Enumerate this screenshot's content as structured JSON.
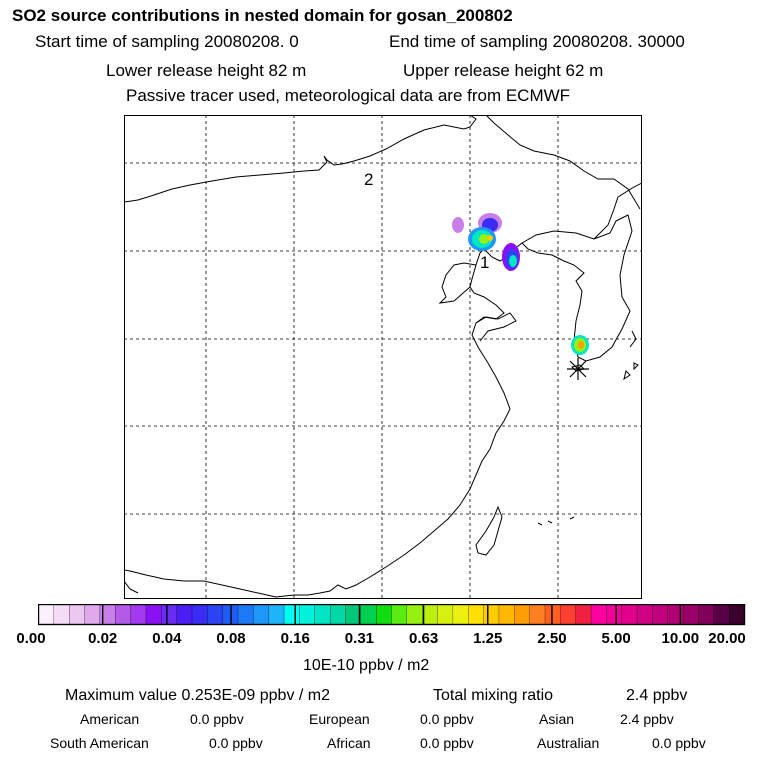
{
  "header": {
    "title": "SO2 source contributions in nested domain for gosan_200802",
    "start_time": "Start time of sampling 20080208.     0",
    "end_time": "End time of sampling 20080208. 30000",
    "lower_height": "Lower release height   82 m",
    "upper_height": "Upper release height   62 m",
    "tracer_note": "Passive tracer used, meteorological data are from ECMWF"
  },
  "map": {
    "source_labels": [
      "1",
      "2"
    ],
    "receptor_marker": "gosan-station"
  },
  "colorbar": {
    "tick_labels": [
      "0.00",
      "0.02",
      "0.04",
      "0.08",
      "0.16",
      "0.31",
      "0.63",
      "1.25",
      "2.50",
      "5.00",
      "10.00",
      "20.00"
    ],
    "unit": "10E-10 ppbv / m2",
    "colors": [
      "#fdf0fd",
      "#f4dcf6",
      "#ebc7f1",
      "#e0a9ec",
      "#c880e8",
      "#b45ae8",
      "#a43af0",
      "#8c10f4",
      "#6a2cf4",
      "#4c1ef6",
      "#3a2cf4",
      "#2a44f4",
      "#1f5cf6",
      "#1d7af7",
      "#1e98f8",
      "#1eb4f9",
      "#00fff0",
      "#00f2dc",
      "#00e6c4",
      "#00d8a8",
      "#00c878",
      "#00d050",
      "#10dc10",
      "#5aec10",
      "#96f010",
      "#bcf010",
      "#d8f010",
      "#ecf010",
      "#ffe000",
      "#ffcc00",
      "#ffb800",
      "#ff9e00",
      "#ff8020",
      "#ff6020",
      "#ff4030",
      "#f02040",
      "#ff00a0",
      "#f00098",
      "#e0008c",
      "#d00084",
      "#c0007c",
      "#b00074",
      "#9a0068",
      "#80005a",
      "#5a0046",
      "#3a002e"
    ]
  },
  "summary": {
    "max_label": "Maximum value  0.253E-09 ppbv / m2",
    "total_label": "Total mixing ratio",
    "total_value": "2.4 ppbv",
    "regions": [
      {
        "name": "American",
        "value": "0.0 ppbv"
      },
      {
        "name": "European",
        "value": "0.0 ppbv"
      },
      {
        "name": "Asian",
        "value": "2.4 ppbv"
      },
      {
        "name": "South American",
        "value": "0.0 ppbv"
      },
      {
        "name": "African",
        "value": "0.0 ppbv"
      },
      {
        "name": "Australian",
        "value": "0.0 ppbv"
      }
    ]
  }
}
